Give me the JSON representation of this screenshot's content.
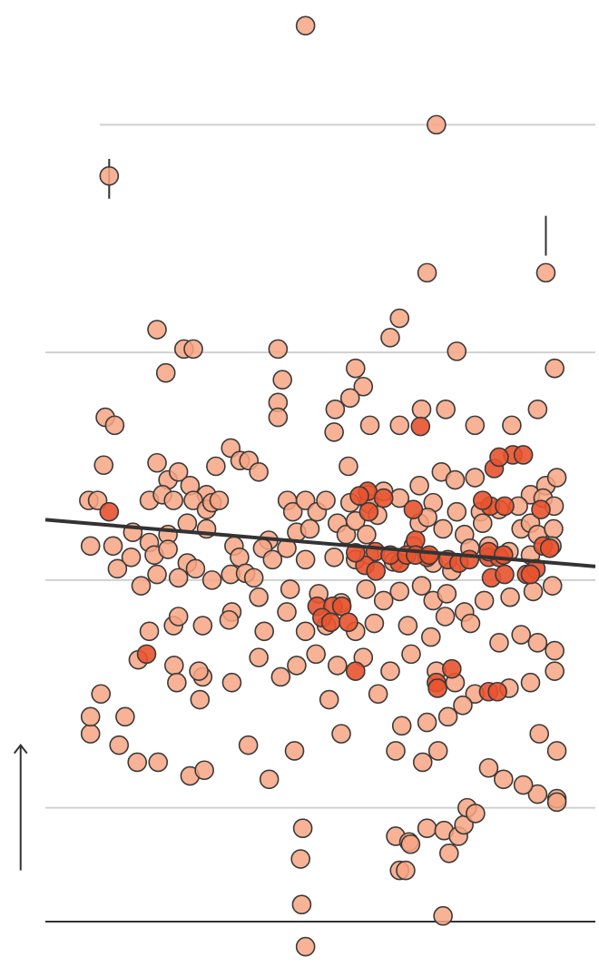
{
  "chart_data": {
    "type": "scatter",
    "title": "",
    "xlabel": "",
    "ylabel": "",
    "y_range": [
      0,
      8
    ],
    "gridlines_y": [
      1,
      3,
      5,
      7
    ],
    "baseline_y": 0,
    "grid": true,
    "legend": "none",
    "colors": {
      "point_fill": "#f7a583",
      "point_highlight_fill": "#e8532f",
      "point_stroke": "#3a3a3a",
      "gridline": "#d0d0d0",
      "axis": "#333333",
      "trend": "#333333"
    },
    "trendline": {
      "x": [
        0,
        100
      ],
      "y": [
        3.53,
        3.12
      ]
    },
    "annotation_ticks": [
      {
        "x": 11.6,
        "y_bottom": 6.35,
        "y_top": 6.7
      },
      {
        "x": 91,
        "y_bottom": 5.85,
        "y_top": 6.2
      }
    ],
    "up_arrow": {
      "x": -4.5,
      "y_from": 0.45,
      "y_to": 1.55
    },
    "points": [
      [
        47.3,
        7.87
      ],
      [
        71.1,
        7.0
      ],
      [
        11.6,
        6.55
      ],
      [
        69.4,
        5.7
      ],
      [
        91,
        5.7
      ],
      [
        20.3,
        5.2
      ],
      [
        64.4,
        5.3
      ],
      [
        62.7,
        5.13
      ],
      [
        74.8,
        5.01
      ],
      [
        25.2,
        5.03
      ],
      [
        26.9,
        5.03
      ],
      [
        42.3,
        5.03
      ],
      [
        56.4,
        4.86
      ],
      [
        57.8,
        4.7
      ],
      [
        43.1,
        4.76
      ],
      [
        21.9,
        4.82
      ],
      [
        55.4,
        4.6
      ],
      [
        42.3,
        4.56
      ],
      [
        92.6,
        4.86
      ],
      [
        10.9,
        4.43
      ],
      [
        12.6,
        4.36
      ],
      [
        52.7,
        4.5
      ],
      [
        64.4,
        4.36
      ],
      [
        68.4,
        4.5
      ],
      [
        72.8,
        4.5
      ],
      [
        89.5,
        4.5
      ],
      [
        52.5,
        4.3
      ],
      [
        59,
        4.36
      ],
      [
        78.1,
        4.36
      ],
      [
        84.8,
        4.36
      ],
      [
        42.3,
        4.43
      ],
      [
        33.7,
        4.16
      ],
      [
        35.4,
        4.05
      ],
      [
        37,
        4.05
      ],
      [
        10.6,
        4.01
      ],
      [
        20.3,
        4.03
      ],
      [
        22.3,
        3.88
      ],
      [
        24.2,
        3.95
      ],
      [
        26.3,
        3.83
      ],
      [
        29.3,
        3.75
      ],
      [
        31,
        4.0
      ],
      [
        38.8,
        3.95
      ],
      [
        55.1,
        4.0
      ],
      [
        58.8,
        3.75
      ],
      [
        61.5,
        3.78
      ],
      [
        68,
        3.83
      ],
      [
        72,
        3.95
      ],
      [
        74.5,
        3.88
      ],
      [
        78.1,
        3.9
      ],
      [
        88.2,
        3.75
      ],
      [
        91,
        3.83
      ],
      [
        93,
        3.9
      ],
      [
        7.9,
        3.7
      ],
      [
        9.5,
        3.7
      ],
      [
        18.9,
        3.7
      ],
      [
        21.3,
        3.75
      ],
      [
        23.3,
        3.7
      ],
      [
        26.9,
        3.7
      ],
      [
        29.3,
        3.62
      ],
      [
        30.3,
        3.68
      ],
      [
        31.6,
        3.7
      ],
      [
        34.3,
        3.3
      ],
      [
        44,
        3.7
      ],
      [
        45,
        3.6
      ],
      [
        47.3,
        3.7
      ],
      [
        49.4,
        3.6
      ],
      [
        51,
        3.7
      ],
      [
        55.4,
        3.68
      ],
      [
        58.9,
        3.67
      ],
      [
        60.4,
        3.57
      ],
      [
        64.4,
        3.72
      ],
      [
        70.5,
        3.68
      ],
      [
        74.8,
        3.6
      ],
      [
        79.1,
        3.6
      ],
      [
        82.5,
        3.62
      ],
      [
        86,
        3.65
      ],
      [
        90.5,
        3.72
      ],
      [
        92.5,
        3.65
      ],
      [
        15.9,
        3.42
      ],
      [
        18.9,
        3.33
      ],
      [
        22.3,
        3.4
      ],
      [
        25.8,
        3.5
      ],
      [
        29.3,
        3.45
      ],
      [
        35.3,
        3.2
      ],
      [
        40.6,
        3.35
      ],
      [
        45.7,
        3.42
      ],
      [
        48.1,
        3.45
      ],
      [
        53.1,
        3.5
      ],
      [
        54.7,
        3.4
      ],
      [
        56.4,
        3.52
      ],
      [
        58.4,
        3.4
      ],
      [
        68,
        3.5
      ],
      [
        69.5,
        3.55
      ],
      [
        72.3,
        3.45
      ],
      [
        76.2,
        3.4
      ],
      [
        79.5,
        3.5
      ],
      [
        86.5,
        3.45
      ],
      [
        88.2,
        3.5
      ],
      [
        89.5,
        3.4
      ],
      [
        92.4,
        3.45
      ],
      [
        8.2,
        3.3
      ],
      [
        12.3,
        3.3
      ],
      [
        15.6,
        3.2
      ],
      [
        19.8,
        3.22
      ],
      [
        22.3,
        3.27
      ],
      [
        25.8,
        3.15
      ],
      [
        33.7,
        3.05
      ],
      [
        36.4,
        3.06
      ],
      [
        37.9,
        3.02
      ],
      [
        39.5,
        3.28
      ],
      [
        41.3,
        3.18
      ],
      [
        43.9,
        3.28
      ],
      [
        47.3,
        3.18
      ],
      [
        52.5,
        3.2
      ],
      [
        56.4,
        3.18
      ],
      [
        58.9,
        3.22
      ],
      [
        63.3,
        3.16
      ],
      [
        66.9,
        3.3
      ],
      [
        70.5,
        3.15
      ],
      [
        73.9,
        3.08
      ],
      [
        77.2,
        3.28
      ],
      [
        80.6,
        3.3
      ],
      [
        84.3,
        3.25
      ],
      [
        88.2,
        3.22
      ],
      [
        92.1,
        3.3
      ],
      [
        13.1,
        3.1
      ],
      [
        17.4,
        2.95
      ],
      [
        20.3,
        3.05
      ],
      [
        24.2,
        3.02
      ],
      [
        27.3,
        3.1
      ],
      [
        30.3,
        3.0
      ],
      [
        33.9,
        2.72
      ],
      [
        38.8,
        2.85
      ],
      [
        44.5,
        2.92
      ],
      [
        49.7,
        2.88
      ],
      [
        53.8,
        2.8
      ],
      [
        58.3,
        2.92
      ],
      [
        61.5,
        2.82
      ],
      [
        64.4,
        2.9
      ],
      [
        68.4,
        2.95
      ],
      [
        70.5,
        2.82
      ],
      [
        73,
        2.88
      ],
      [
        76.2,
        2.72
      ],
      [
        79.8,
        2.82
      ],
      [
        84.5,
        2.85
      ],
      [
        88.7,
        2.9
      ],
      [
        92.2,
        2.95
      ],
      [
        18.9,
        2.55
      ],
      [
        23.3,
        2.6
      ],
      [
        28.6,
        2.6
      ],
      [
        33.4,
        2.65
      ],
      [
        39.8,
        2.55
      ],
      [
        43.9,
        2.72
      ],
      [
        47.3,
        2.55
      ],
      [
        51.1,
        2.6
      ],
      [
        56.4,
        2.55
      ],
      [
        59.8,
        2.62
      ],
      [
        65.9,
        2.6
      ],
      [
        70.1,
        2.5
      ],
      [
        72.7,
        2.68
      ],
      [
        77.3,
        2.62
      ],
      [
        82.5,
        2.45
      ],
      [
        86.5,
        2.52
      ],
      [
        89.5,
        2.45
      ],
      [
        92.6,
        2.38
      ],
      [
        24.2,
        2.68
      ],
      [
        16.9,
        2.3
      ],
      [
        23.4,
        2.25
      ],
      [
        28.6,
        2.15
      ],
      [
        33.9,
        2.1
      ],
      [
        38.8,
        2.32
      ],
      [
        42.8,
        2.15
      ],
      [
        45.7,
        2.25
      ],
      [
        49.2,
        2.35
      ],
      [
        53.1,
        2.25
      ],
      [
        57.8,
        2.32
      ],
      [
        62.7,
        2.2
      ],
      [
        66.5,
        2.35
      ],
      [
        71.1,
        2.2
      ],
      [
        74.5,
        2.1
      ],
      [
        78.1,
        2.0
      ],
      [
        84.3,
        2.05
      ],
      [
        88.2,
        2.1
      ],
      [
        92.6,
        2.2
      ],
      [
        10.1,
        2.0
      ],
      [
        14.5,
        1.8
      ],
      [
        27.9,
        2.2
      ],
      [
        28.1,
        1.95
      ],
      [
        51.6,
        1.95
      ],
      [
        60.5,
        2.0
      ],
      [
        64.8,
        1.72
      ],
      [
        69.4,
        1.75
      ],
      [
        73.2,
        1.8
      ],
      [
        75.9,
        1.9
      ],
      [
        8.2,
        1.65
      ],
      [
        13.4,
        1.55
      ],
      [
        16.7,
        1.4
      ],
      [
        26.3,
        1.28
      ],
      [
        28.9,
        1.33
      ],
      [
        40.7,
        1.25
      ],
      [
        46.8,
        0.82
      ],
      [
        46.4,
        0.55
      ],
      [
        63.7,
        0.75
      ],
      [
        66.1,
        0.7
      ],
      [
        69.4,
        0.82
      ],
      [
        72.5,
        0.8
      ],
      [
        75.1,
        0.75
      ],
      [
        76.1,
        0.85
      ],
      [
        76.7,
        1.0
      ],
      [
        93,
        1.08
      ],
      [
        93,
        1.05
      ],
      [
        89.5,
        1.12
      ],
      [
        80.6,
        1.35
      ],
      [
        83.3,
        1.25
      ],
      [
        23.9,
        2.1
      ],
      [
        20.5,
        1.4
      ],
      [
        36.9,
        1.55
      ],
      [
        45.3,
        1.5
      ],
      [
        53.8,
        1.65
      ],
      [
        63.7,
        1.5
      ],
      [
        68.6,
        1.4
      ],
      [
        71.4,
        1.5
      ],
      [
        66.4,
        0.68
      ],
      [
        73.4,
        0.6
      ],
      [
        64.4,
        0.45
      ],
      [
        46.6,
        0.15
      ],
      [
        72.3,
        0.05
      ],
      [
        65.5,
        0.45
      ],
      [
        78.2,
        0.95
      ],
      [
        86.9,
        1.2
      ],
      [
        93,
        1.5
      ],
      [
        89.8,
        1.65
      ],
      [
        47.3,
        -0.22
      ],
      [
        8.2,
        1.8
      ]
    ],
    "highlight_points": [
      [
        11.6,
        3.6
      ],
      [
        18.4,
        2.35
      ],
      [
        58.8,
        3.6
      ],
      [
        67.3,
        3.35
      ],
      [
        85,
        4.1
      ],
      [
        86.9,
        4.1
      ],
      [
        64.4,
        3.15
      ],
      [
        69.4,
        3.2
      ],
      [
        73.2,
        3.18
      ],
      [
        75.2,
        3.15
      ],
      [
        77.1,
        3.18
      ],
      [
        80.6,
        3.2
      ],
      [
        82.5,
        3.2
      ],
      [
        60,
        3.25
      ],
      [
        62.7,
        3.22
      ],
      [
        65.7,
        3.22
      ],
      [
        67.3,
        3.22
      ],
      [
        69.8,
        3.22
      ],
      [
        80.9,
        3.65
      ],
      [
        79.5,
        3.7
      ],
      [
        83.5,
        3.65
      ],
      [
        58.1,
        3.13
      ],
      [
        56.4,
        3.24
      ],
      [
        87.5,
        3.05
      ],
      [
        89.2,
        3.1
      ],
      [
        58.6,
        3.78
      ],
      [
        60.1,
        3.08
      ],
      [
        81.1,
        3.02
      ],
      [
        81.6,
        3.98
      ],
      [
        82.5,
        4.08
      ],
      [
        49.4,
        2.77
      ],
      [
        52.3,
        2.77
      ],
      [
        53.9,
        2.77
      ],
      [
        50.3,
        2.67
      ],
      [
        51.9,
        2.63
      ],
      [
        55.1,
        2.63
      ],
      [
        56.4,
        2.2
      ],
      [
        71.1,
        2.1
      ],
      [
        71.3,
        2.05
      ],
      [
        73.9,
        2.22
      ],
      [
        80.6,
        2.02
      ],
      [
        82.2,
        2.02
      ],
      [
        68.2,
        4.35
      ],
      [
        66.9,
        3.62
      ],
      [
        80.6,
        3.25
      ],
      [
        88.2,
        3.05
      ],
      [
        90.5,
        3.3
      ],
      [
        91.7,
        3.28
      ],
      [
        90.1,
        3.62
      ],
      [
        83.3,
        3.22
      ],
      [
        57.1,
        3.74
      ],
      [
        61.5,
        3.72
      ],
      [
        83.5,
        3.05
      ]
    ]
  }
}
